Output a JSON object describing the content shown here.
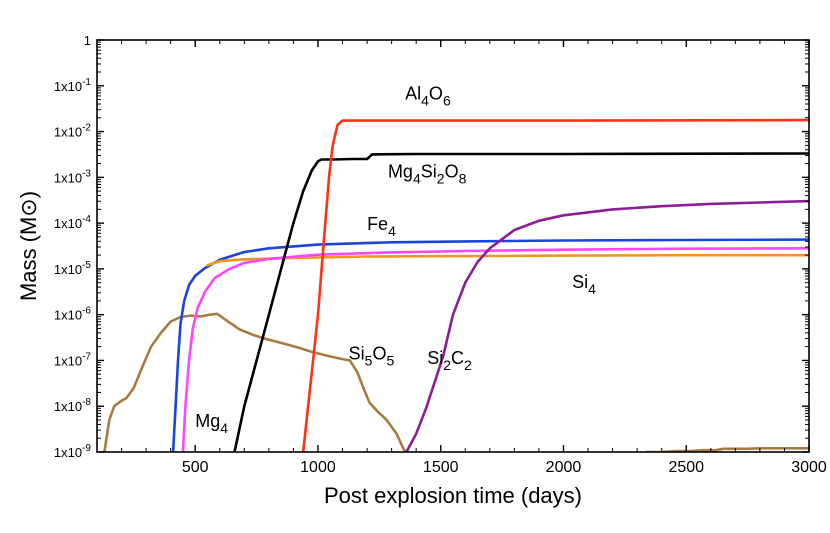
{
  "chart_data": {
    "type": "line",
    "title": "",
    "xlabel": "Post explosion time (days)",
    "ylabel": "Mass (M⊙)",
    "xlim": [
      100,
      3000
    ],
    "ylim_log10": [
      -9,
      0
    ],
    "yscale": "log",
    "grid": false,
    "x_ticks": [
      {
        "value": 500,
        "label": "500"
      },
      {
        "value": 1000,
        "label": "1000"
      },
      {
        "value": 1500,
        "label": "1500"
      },
      {
        "value": 2000,
        "label": "2000"
      },
      {
        "value": 2500,
        "label": "2500"
      },
      {
        "value": 3000,
        "label": "3000"
      }
    ],
    "y_ticks": [
      {
        "exp": 0,
        "label": "1",
        "sup": ""
      },
      {
        "exp": -1,
        "label": "1x10",
        "sup": "-1"
      },
      {
        "exp": -2,
        "label": "1x10",
        "sup": "-2"
      },
      {
        "exp": -3,
        "label": "1x10",
        "sup": "-3"
      },
      {
        "exp": -4,
        "label": "1x10",
        "sup": "-4"
      },
      {
        "exp": -5,
        "label": "1x10",
        "sup": "-5"
      },
      {
        "exp": -6,
        "label": "1x10",
        "sup": "-6"
      },
      {
        "exp": -7,
        "label": "1x10",
        "sup": "-7"
      },
      {
        "exp": -8,
        "label": "1x10",
        "sup": "-8"
      },
      {
        "exp": -9,
        "label": "1x10",
        "sup": "-9"
      }
    ],
    "series": [
      {
        "name": "Mg4",
        "color": "#a67c45",
        "label": {
          "parts": [
            [
              "Mg",
              ""
            ],
            [
              "4",
              "sub"
            ]
          ],
          "x": 500,
          "y": -8.45
        },
        "points": [
          [
            130,
            -9
          ],
          [
            150,
            -8.3
          ],
          [
            170,
            -8
          ],
          [
            200,
            -7.88
          ],
          [
            220,
            -7.82
          ],
          [
            250,
            -7.6
          ],
          [
            280,
            -7.2
          ],
          [
            320,
            -6.7
          ],
          [
            360,
            -6.4
          ],
          [
            400,
            -6.15
          ],
          [
            440,
            -6.05
          ],
          [
            480,
            -6.02
          ],
          [
            520,
            -6.04
          ],
          [
            560,
            -6
          ],
          [
            590,
            -5.98
          ],
          [
            620,
            -6.1
          ],
          [
            680,
            -6.32
          ],
          [
            740,
            -6.45
          ],
          [
            800,
            -6.55
          ],
          [
            860,
            -6.63
          ],
          [
            920,
            -6.72
          ],
          [
            980,
            -6.82
          ],
          [
            1040,
            -6.9
          ],
          [
            1100,
            -6.97
          ],
          [
            1130,
            -7.0
          ],
          [
            1160,
            -7.25
          ],
          [
            1185,
            -7.6
          ],
          [
            1210,
            -7.92
          ],
          [
            1240,
            -8.1
          ],
          [
            1280,
            -8.3
          ],
          [
            1320,
            -8.6
          ],
          [
            1350,
            -8.95
          ],
          [
            1360,
            -9
          ]
        ]
      },
      {
        "name": "Mg4 (late)",
        "color": "#a67c45",
        "label": null,
        "points": [
          [
            2340,
            -9
          ],
          [
            2400,
            -9
          ],
          [
            2460,
            -8.98
          ],
          [
            2520,
            -8.98
          ],
          [
            2560,
            -8.96
          ],
          [
            2620,
            -8.96
          ],
          [
            2650,
            -8.93
          ],
          [
            2750,
            -8.93
          ],
          [
            2800,
            -8.92
          ],
          [
            3000,
            -8.92
          ]
        ]
      },
      {
        "name": "Fe4",
        "color": "#1a45d8",
        "label": {
          "parts": [
            [
              "Fe",
              ""
            ],
            [
              "4",
              "sub"
            ]
          ],
          "x": 1200,
          "y": -4.15
        },
        "points": [
          [
            410,
            -9
          ],
          [
            420,
            -8
          ],
          [
            430,
            -7
          ],
          [
            440,
            -6.2
          ],
          [
            455,
            -5.7
          ],
          [
            475,
            -5.35
          ],
          [
            500,
            -5.15
          ],
          [
            540,
            -4.98
          ],
          [
            600,
            -4.8
          ],
          [
            700,
            -4.63
          ],
          [
            800,
            -4.55
          ],
          [
            1000,
            -4.47
          ],
          [
            1300,
            -4.42
          ],
          [
            1600,
            -4.4
          ],
          [
            2000,
            -4.38
          ],
          [
            2500,
            -4.37
          ],
          [
            3000,
            -4.36
          ]
        ]
      },
      {
        "name": "Si4",
        "color": "#f0961e",
        "label": {
          "parts": [
            [
              "Si",
              ""
            ],
            [
              "4",
              "sub"
            ]
          ],
          "x": 2035,
          "y": -5.42
        },
        "points": [
          [
            550,
            -4.92
          ],
          [
            600,
            -4.83
          ],
          [
            700,
            -4.79
          ],
          [
            900,
            -4.76
          ],
          [
            1200,
            -4.73
          ],
          [
            1600,
            -4.72
          ],
          [
            2000,
            -4.71
          ],
          [
            2500,
            -4.7
          ],
          [
            3000,
            -4.7
          ]
        ]
      },
      {
        "name": "Si2C2",
        "color": "#ff45ff",
        "label": null,
        "points": [
          [
            450,
            -9
          ],
          [
            460,
            -8
          ],
          [
            475,
            -7
          ],
          [
            490,
            -6.3
          ],
          [
            510,
            -5.85
          ],
          [
            540,
            -5.5
          ],
          [
            580,
            -5.2
          ],
          [
            640,
            -5.0
          ],
          [
            700,
            -4.87
          ],
          [
            800,
            -4.78
          ],
          [
            1000,
            -4.69
          ],
          [
            1300,
            -4.64
          ],
          [
            1600,
            -4.61
          ],
          [
            2000,
            -4.58
          ],
          [
            2500,
            -4.56
          ],
          [
            3000,
            -4.55
          ]
        ]
      },
      {
        "name": "Mg4Si2O8",
        "color": "#000000",
        "label": {
          "parts": [
            [
              "Mg",
              ""
            ],
            [
              "4",
              "sub"
            ],
            [
              "Si",
              ""
            ],
            [
              "2",
              "sub"
            ],
            [
              "O",
              ""
            ],
            [
              "8",
              "sub"
            ]
          ],
          "x": 1285,
          "y": -3.0
        },
        "points": [
          [
            660,
            -9
          ],
          [
            700,
            -8
          ],
          [
            750,
            -7
          ],
          [
            800,
            -6
          ],
          [
            850,
            -5
          ],
          [
            900,
            -4
          ],
          [
            940,
            -3.3
          ],
          [
            975,
            -2.85
          ],
          [
            1000,
            -2.65
          ],
          [
            1015,
            -2.61
          ],
          [
            1060,
            -2.61
          ],
          [
            1140,
            -2.6
          ],
          [
            1200,
            -2.6
          ],
          [
            1220,
            -2.5
          ],
          [
            1400,
            -2.49
          ],
          [
            2000,
            -2.49
          ],
          [
            3000,
            -2.48
          ]
        ]
      },
      {
        "name": "Al4O6",
        "color": "#ff3216",
        "label": {
          "parts": [
            [
              "Al",
              ""
            ],
            [
              "4",
              "sub"
            ],
            [
              "O",
              ""
            ],
            [
              "6",
              "sub"
            ]
          ],
          "x": 1355,
          "y": -1.3
        },
        "points": [
          [
            940,
            -9
          ],
          [
            960,
            -8
          ],
          [
            980,
            -7
          ],
          [
            1000,
            -6
          ],
          [
            1015,
            -5
          ],
          [
            1030,
            -4
          ],
          [
            1045,
            -3
          ],
          [
            1060,
            -2.3
          ],
          [
            1080,
            -1.85
          ],
          [
            1100,
            -1.76
          ],
          [
            1200,
            -1.76
          ],
          [
            1600,
            -1.76
          ],
          [
            2000,
            -1.76
          ],
          [
            3000,
            -1.75
          ]
        ]
      },
      {
        "name": "Si5O5 (purple)",
        "color": "#8b1e96",
        "label": {
          "parts": [
            [
              "Si",
              ""
            ],
            [
              "5",
              "sub"
            ],
            [
              "O",
              ""
            ],
            [
              "5",
              "sub"
            ]
          ],
          "x": 1125,
          "y": -6.98
        },
        "points": [
          [
            1360,
            -9
          ],
          [
            1400,
            -8.6
          ],
          [
            1440,
            -8.05
          ],
          [
            1480,
            -7.4
          ],
          [
            1510,
            -6.9
          ],
          [
            1550,
            -6.0
          ],
          [
            1600,
            -5.3
          ],
          [
            1650,
            -4.85
          ],
          [
            1700,
            -4.55
          ],
          [
            1800,
            -4.15
          ],
          [
            1900,
            -3.95
          ],
          [
            2000,
            -3.83
          ],
          [
            2200,
            -3.7
          ],
          [
            2400,
            -3.63
          ],
          [
            2600,
            -3.58
          ],
          [
            2800,
            -3.55
          ],
          [
            3000,
            -3.52
          ]
        ]
      }
    ],
    "extra_labels": [
      {
        "parts": [
          [
            "Si",
            ""
          ],
          [
            "2",
            "sub"
          ],
          [
            "C",
            ""
          ],
          [
            "2",
            "sub"
          ]
        ],
        "x": 1445,
        "y": -7.08
      }
    ]
  }
}
